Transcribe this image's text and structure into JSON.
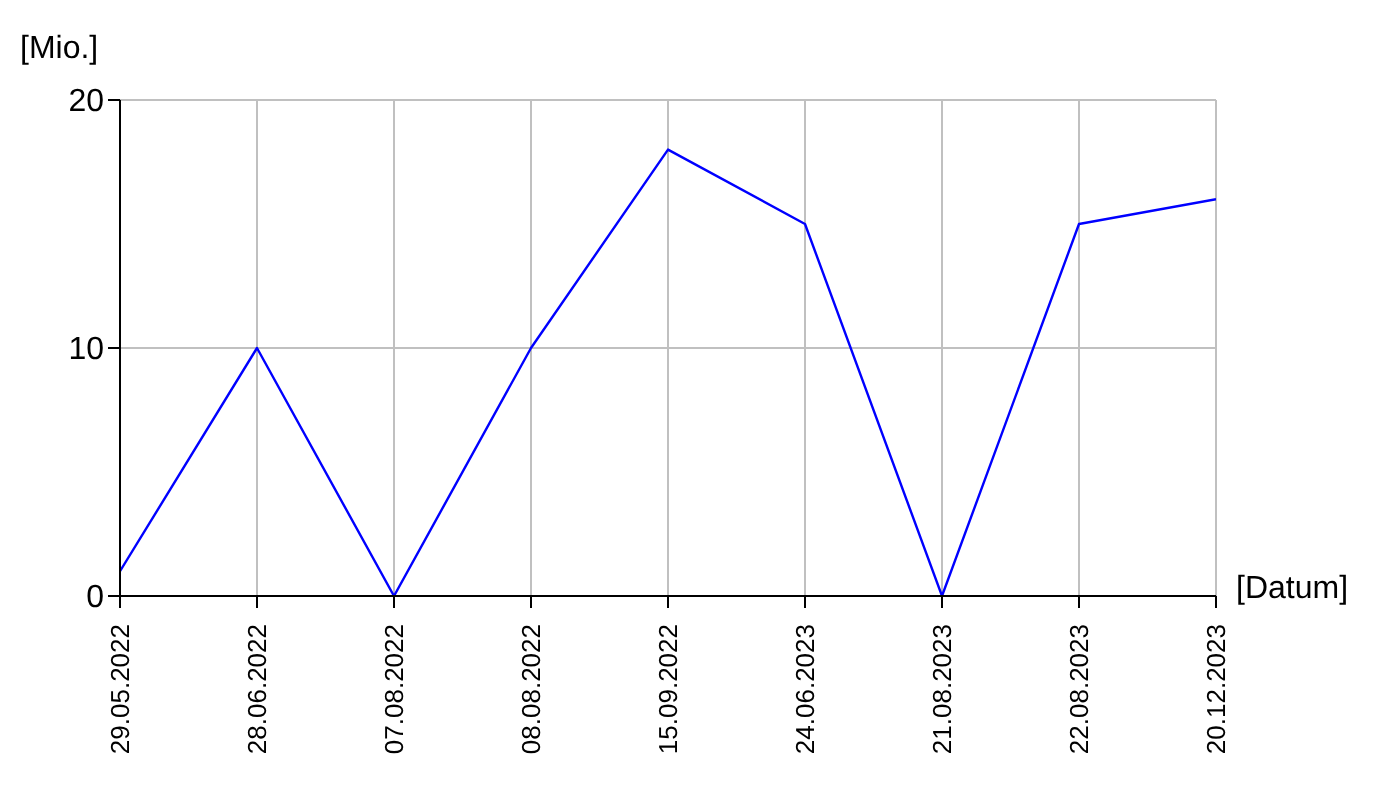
{
  "chart_data": {
    "type": "line",
    "xlabel": "[Datum]",
    "ylabel": "[Mio.]",
    "categories": [
      "29.05.2022",
      "28.06.2022",
      "07.08.2022",
      "08.08.2022",
      "15.09.2022",
      "24.06.2023",
      "21.08.2023",
      "22.08.2023",
      "20.12.2023"
    ],
    "series": [
      {
        "color": "#0000ff",
        "values": [
          1,
          10,
          0,
          10,
          18,
          15,
          0,
          15,
          16
        ]
      }
    ],
    "ylim": [
      0,
      20
    ],
    "yticks": [
      0,
      10,
      20
    ],
    "grid": true,
    "marker": "none",
    "line_style": "solid"
  }
}
